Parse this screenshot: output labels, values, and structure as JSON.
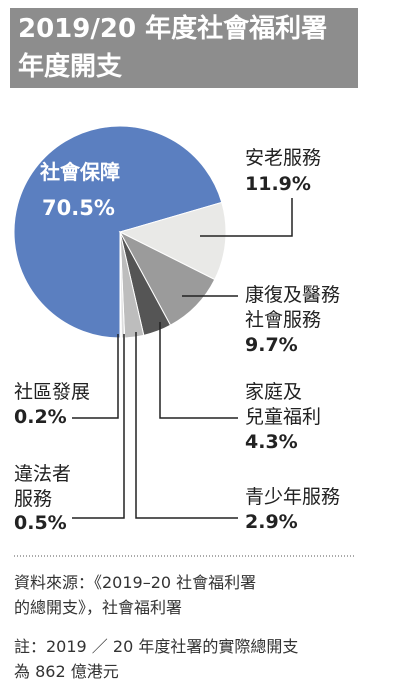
{
  "chart_data": {
    "type": "pie",
    "title": "2019/20 年度社會福利署年度開支",
    "categories": [
      "社會保障",
      "安老服務",
      "康復及醫務\n社會服務",
      "家庭及\n兒童福利",
      "青少年服務",
      "違法者\n服務",
      "社區發展"
    ],
    "values": [
      70.5,
      11.9,
      9.7,
      4.3,
      2.9,
      0.5,
      0.2
    ],
    "value_labels": [
      "70.5%",
      "11.9%",
      "9.7%",
      "4.3%",
      "2.9%",
      "0.5%",
      "0.2%"
    ],
    "colors": [
      "#5b7fc0",
      "#e9e9e7",
      "#9b9b9b",
      "#555555",
      "#bdbdbd",
      "#dddddd",
      "#f2f2f2"
    ],
    "source": "資料來源：《2019–20 社會福利署\n的總開支》，社會福利署",
    "note": "註：2019 ／ 20 年度社署的實際總開支\n為 862 億港元"
  }
}
